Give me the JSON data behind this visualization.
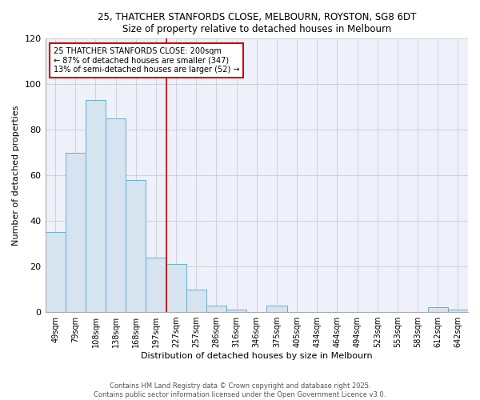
{
  "title1": "25, THATCHER STANFORDS CLOSE, MELBOURN, ROYSTON, SG8 6DT",
  "title2": "Size of property relative to detached houses in Melbourn",
  "xlabel": "Distribution of detached houses by size in Melbourn",
  "ylabel": "Number of detached properties",
  "bar_labels": [
    "49sqm",
    "79sqm",
    "108sqm",
    "138sqm",
    "168sqm",
    "197sqm",
    "227sqm",
    "257sqm",
    "286sqm",
    "316sqm",
    "346sqm",
    "375sqm",
    "405sqm",
    "434sqm",
    "464sqm",
    "494sqm",
    "523sqm",
    "553sqm",
    "583sqm",
    "612sqm",
    "642sqm"
  ],
  "bar_values": [
    35,
    70,
    93,
    85,
    58,
    24,
    21,
    10,
    3,
    1,
    0,
    3,
    0,
    0,
    0,
    0,
    0,
    0,
    0,
    2,
    1
  ],
  "bar_color": "#d6e4f0",
  "bar_edge_color": "#6aaed6",
  "vline_x_index": 5,
  "vline_color": "#cc0000",
  "annotation_text": "25 THATCHER STANFORDS CLOSE: 200sqm\n← 87% of detached houses are smaller (347)\n13% of semi-detached houses are larger (52) →",
  "annotation_box_color": "#ffffff",
  "annotation_box_edge": "#cc0000",
  "ylim": [
    0,
    120
  ],
  "yticks": [
    0,
    20,
    40,
    60,
    80,
    100,
    120
  ],
  "footnote1": "Contains HM Land Registry data © Crown copyright and database right 2025.",
  "footnote2": "Contains public sector information licensed under the Open Government Licence v3.0.",
  "bg_color": "#eef1f9",
  "plot_bg_color": "#eef1f9",
  "grid_color": "#c8cdd8"
}
